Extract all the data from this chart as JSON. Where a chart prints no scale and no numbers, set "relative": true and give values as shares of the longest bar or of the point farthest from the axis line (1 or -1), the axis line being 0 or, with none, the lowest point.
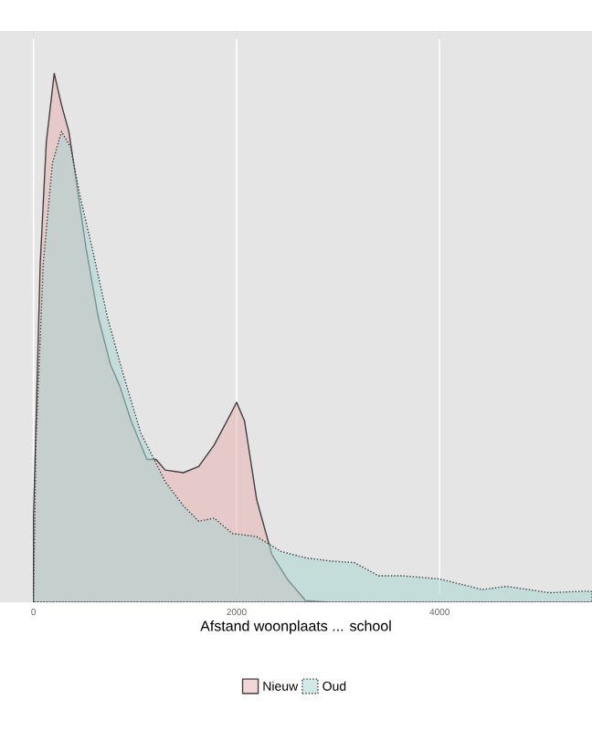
{
  "chart_data": {
    "type": "area",
    "xlabel": "Afstand woonplaats ... school",
    "relative": true,
    "xlim": [
      -330,
      5500
    ],
    "xticks": [
      0,
      2000,
      4000
    ],
    "grid": "x",
    "legend": "bottom",
    "series": [
      {
        "name": "Nieuw",
        "color": "#e8b4b4",
        "line_style": "solid",
        "x": [
          0,
          66,
          126,
          204,
          276,
          348,
          426,
          517,
          637,
          757,
          847,
          967,
          1117,
          1207,
          1297,
          1477,
          1628,
          1778,
          1898,
          2000,
          2078,
          2198,
          2348,
          2498,
          2679,
          2919,
          5500
        ],
        "values": [
          0.16,
          0.64,
          0.87,
          1.0,
          0.94,
          0.89,
          0.79,
          0.67,
          0.54,
          0.45,
          0.41,
          0.34,
          0.27,
          0.27,
          0.25,
          0.245,
          0.257,
          0.297,
          0.34,
          0.378,
          0.343,
          0.194,
          0.09,
          0.044,
          0.003,
          0,
          0
        ]
      },
      {
        "name": "Oud",
        "color": "#a9d6d2",
        "line_style": "dotted",
        "x": [
          0,
          24,
          96,
          186,
          276,
          366,
          456,
          577,
          727,
          877,
          1057,
          1297,
          1477,
          1628,
          1778,
          1958,
          2198,
          2438,
          2679,
          2919,
          3159,
          3399,
          3640,
          4000,
          4420,
          4660,
          5081,
          5441,
          5500
        ],
        "values": [
          0,
          0.3,
          0.64,
          0.83,
          0.89,
          0.86,
          0.77,
          0.67,
          0.54,
          0.435,
          0.32,
          0.228,
          0.182,
          0.153,
          0.159,
          0.13,
          0.124,
          0.096,
          0.084,
          0.078,
          0.075,
          0.05,
          0.05,
          0.044,
          0.024,
          0.03,
          0.018,
          0.021,
          0.02
        ]
      }
    ]
  }
}
